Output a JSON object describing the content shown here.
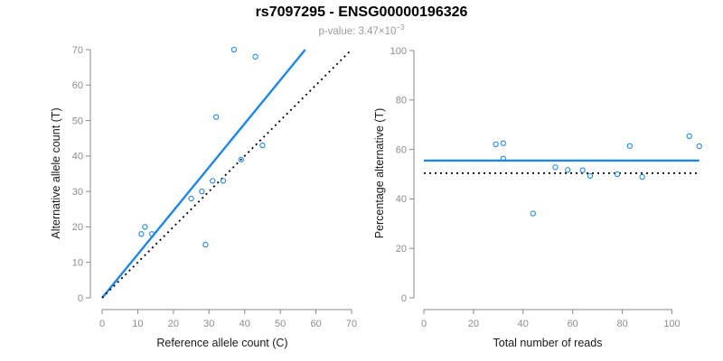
{
  "header": {
    "title": "rs7097295 - ENSG00000196326",
    "p_value_text": "p-value: 3.47×10",
    "p_value_exponent": "−3"
  },
  "colors": {
    "accent_blue": "#1E86E5",
    "point_blue": "#1E86E5",
    "line_black": "#000000",
    "axis_gray": "#888888",
    "tick_label_gray": "#8c8c8c",
    "axis_label_dark": "#1a1a1a",
    "title_black": "#000000",
    "subtitle_gray": "#9a9a9a"
  },
  "chart_data": [
    {
      "name": "allele-counts-scatter",
      "type": "scatter",
      "xlabel": "Reference allele count (C)",
      "ylabel": "Alternative allele count (T)",
      "xlim": [
        0,
        70
      ],
      "ylim": [
        0,
        70
      ],
      "xticks": [
        0,
        10,
        20,
        30,
        40,
        50,
        60,
        70
      ],
      "yticks": [
        0,
        10,
        20,
        30,
        40,
        50,
        60,
        70
      ],
      "grid": false,
      "points": [
        [
          37,
          70
        ],
        [
          43,
          68
        ],
        [
          32,
          51
        ],
        [
          45,
          43
        ],
        [
          39,
          39
        ],
        [
          31,
          33
        ],
        [
          34,
          33
        ],
        [
          28,
          30
        ],
        [
          25,
          28
        ],
        [
          12,
          20
        ],
        [
          11,
          18
        ],
        [
          14,
          18
        ],
        [
          29,
          15
        ]
      ],
      "lines": [
        {
          "name": "regression-line",
          "x1": 0,
          "y1": 0,
          "x2": 57,
          "y2": 70,
          "color": "#1E86E5",
          "dash": false,
          "width": 2.4
        },
        {
          "name": "identity-line",
          "x1": 0,
          "y1": 0,
          "x2": 70,
          "y2": 70,
          "color": "#000000",
          "dash": true,
          "width": 1.8
        }
      ]
    },
    {
      "name": "percentage-reads-scatter",
      "type": "scatter",
      "xlabel": "Total number of reads",
      "ylabel": "Percentage alternative (T)",
      "xlim": [
        0,
        111
      ],
      "ylim": [
        0,
        100
      ],
      "xticks": [
        0,
        20,
        40,
        60,
        80,
        100
      ],
      "yticks": [
        0,
        20,
        40,
        60,
        80,
        100
      ],
      "grid": false,
      "points": [
        [
          29,
          62.1
        ],
        [
          32,
          62.5
        ],
        [
          32,
          56.3
        ],
        [
          44,
          34.1
        ],
        [
          53,
          52.8
        ],
        [
          58,
          51.7
        ],
        [
          64,
          51.6
        ],
        [
          67,
          49.3
        ],
        [
          78,
          50.0
        ],
        [
          83,
          61.4
        ],
        [
          88,
          48.9
        ],
        [
          107,
          65.4
        ],
        [
          111,
          61.3
        ]
      ],
      "lines": [
        {
          "name": "mean-line",
          "x1": 0,
          "y1": 55.5,
          "x2": 111,
          "y2": 55.5,
          "color": "#1E86E5",
          "dash": false,
          "width": 2.4
        },
        {
          "name": "null-line",
          "x1": 0,
          "y1": 50.4,
          "x2": 111,
          "y2": 50.4,
          "color": "#000000",
          "dash": true,
          "width": 1.8
        }
      ]
    }
  ]
}
